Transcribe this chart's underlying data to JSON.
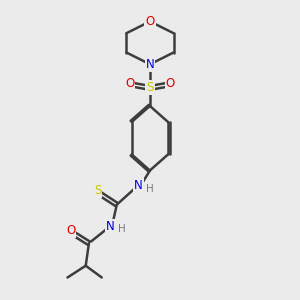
{
  "bg_color": "#ebebeb",
  "atom_colors": {
    "C": "#3d3d3d",
    "N": "#0000e0",
    "O": "#e00000",
    "S": "#c8c800",
    "H": "#7a7a7a"
  },
  "bond_color": "#3d3d3d",
  "bond_width": 1.8,
  "fig_w": 3.0,
  "fig_h": 3.0,
  "dpi": 100,
  "xlim": [
    0,
    10
  ],
  "ylim": [
    0,
    14
  ]
}
